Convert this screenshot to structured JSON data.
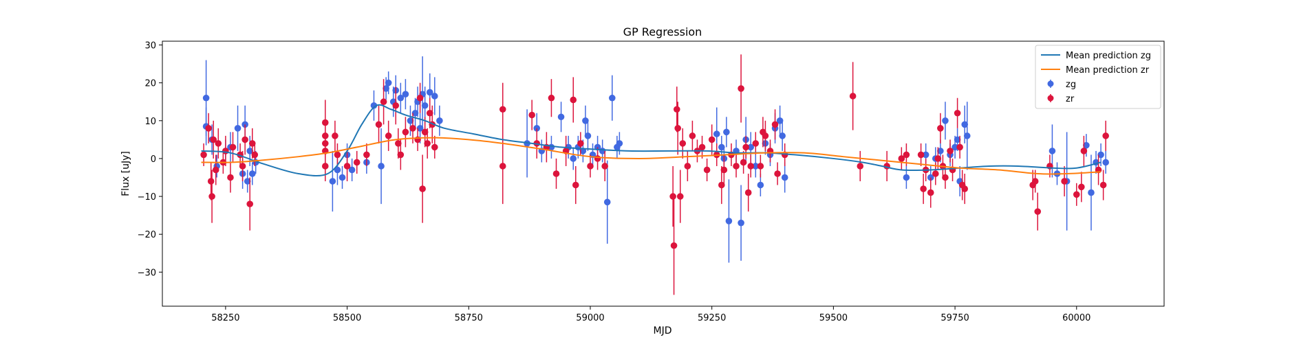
{
  "chart_data": {
    "type": "scatter",
    "title": "GP Regression",
    "xlabel": "MJD",
    "ylabel": "Flux [uJy]",
    "xlim": [
      58120,
      60180
    ],
    "ylim": [
      -39,
      31
    ],
    "xticks": [
      58250,
      58500,
      58750,
      59000,
      59250,
      59500,
      59750,
      60000
    ],
    "yticks": [
      -30,
      -20,
      -10,
      0,
      10,
      20,
      30
    ],
    "xtick_labels": [
      "58250",
      "58500",
      "58750",
      "59000",
      "59250",
      "59500",
      "59750",
      "60000"
    ],
    "ytick_labels": [
      "−30",
      "−20",
      "−10",
      "0",
      "10",
      "20",
      "30"
    ],
    "legend_position": "top-right",
    "legend": [
      {
        "label": "Mean prediction zg",
        "kind": "line",
        "color": "#1f77b4"
      },
      {
        "label": "Mean prediction zr",
        "kind": "line",
        "color": "#ff7f0e"
      },
      {
        "label": "zg",
        "kind": "errorbar",
        "color": "#4169e1"
      },
      {
        "label": "zr",
        "kind": "errorbar",
        "color": "#dc143c"
      }
    ],
    "lines": [
      {
        "name": "Mean prediction zg",
        "color": "#1f77b4",
        "x": [
          58200,
          58260,
          58330,
          58400,
          58460,
          58500,
          58530,
          58560,
          58590,
          58620,
          58660,
          58700,
          58760,
          58820,
          58880,
          58940,
          59000,
          59080,
          59160,
          59240,
          59300,
          59360,
          59420,
          59500,
          59560,
          59600,
          59640,
          59700,
          59760,
          59820,
          59880,
          59950,
          60000,
          60050
        ],
        "y": [
          2,
          1.5,
          -1.5,
          -4,
          -4,
          2,
          9,
          14,
          13,
          11.5,
          10,
          8,
          6.5,
          5,
          4,
          3,
          2.5,
          2,
          2,
          2,
          1.5,
          1.5,
          1,
          0,
          -1,
          -2,
          -3,
          -3,
          -2.5,
          -2,
          -2,
          -2.5,
          -2.5,
          -1
        ]
      },
      {
        "name": "Mean prediction zr",
        "color": "#ff7f0e",
        "x": [
          58200,
          58260,
          58320,
          58400,
          58460,
          58520,
          58600,
          58680,
          58750,
          58820,
          58900,
          59000,
          59100,
          59200,
          59280,
          59360,
          59440,
          59520,
          59600,
          59680,
          59760,
          59840,
          59920,
          59980,
          60050
        ],
        "y": [
          -1,
          -1,
          -0.5,
          0.5,
          1.5,
          3,
          5,
          5.5,
          5,
          4,
          2.5,
          0.5,
          0,
          0.5,
          1,
          1.5,
          1.5,
          0.5,
          -0.5,
          -1.5,
          -2.5,
          -3,
          -4,
          -4,
          -3.5
        ]
      }
    ],
    "series": [
      {
        "name": "zg",
        "color": "#4169e1",
        "points": [
          [
            58210,
            16,
            10
          ],
          [
            58210,
            8.5,
            5
          ],
          [
            58222,
            5,
            4
          ],
          [
            58232,
            -2,
            3
          ],
          [
            58250,
            2,
            3
          ],
          [
            58260,
            3,
            4
          ],
          [
            58275,
            8,
            6
          ],
          [
            58285,
            -4,
            4
          ],
          [
            58290,
            9,
            5
          ],
          [
            58295,
            -6,
            3
          ],
          [
            58300,
            2,
            4
          ],
          [
            58305,
            -4,
            3
          ],
          [
            58312,
            -1,
            3
          ],
          [
            58470,
            -6,
            8
          ],
          [
            58480,
            -3,
            4
          ],
          [
            58490,
            -5,
            3
          ],
          [
            58500,
            1,
            3
          ],
          [
            58510,
            -3,
            3
          ],
          [
            58540,
            -1,
            3
          ],
          [
            58555,
            14,
            4
          ],
          [
            58570,
            -2,
            10
          ],
          [
            58580,
            18.5,
            3
          ],
          [
            58585,
            20,
            3
          ],
          [
            58595,
            15,
            4
          ],
          [
            58600,
            18,
            4
          ],
          [
            58610,
            16,
            4
          ],
          [
            58620,
            17,
            4
          ],
          [
            58630,
            10,
            4
          ],
          [
            58640,
            12,
            4
          ],
          [
            58645,
            15,
            4
          ],
          [
            58650,
            8,
            4
          ],
          [
            58655,
            17,
            10
          ],
          [
            58660,
            14,
            5
          ],
          [
            58670,
            17.5,
            5
          ],
          [
            58680,
            16.5,
            5
          ],
          [
            58690,
            10,
            4
          ],
          [
            58870,
            4,
            9
          ],
          [
            58890,
            8,
            4
          ],
          [
            58900,
            2,
            3
          ],
          [
            58920,
            3,
            3
          ],
          [
            58940,
            11,
            4
          ],
          [
            58955,
            3,
            3
          ],
          [
            58965,
            0,
            3
          ],
          [
            58975,
            3,
            3
          ],
          [
            58985,
            2,
            3
          ],
          [
            58990,
            10,
            4
          ],
          [
            58995,
            6,
            4
          ],
          [
            59005,
            1,
            3
          ],
          [
            59015,
            3,
            3
          ],
          [
            59025,
            2,
            3
          ],
          [
            59035,
            -11.5,
            11
          ],
          [
            59045,
            16,
            6
          ],
          [
            59055,
            3,
            3
          ],
          [
            59060,
            4,
            3
          ],
          [
            59260,
            6.5,
            7
          ],
          [
            59270,
            3,
            3
          ],
          [
            59275,
            0,
            3
          ],
          [
            59280,
            7,
            4
          ],
          [
            59285,
            -16.5,
            11
          ],
          [
            59300,
            2,
            3
          ],
          [
            59310,
            -17,
            10
          ],
          [
            59320,
            5,
            6
          ],
          [
            59330,
            3,
            4
          ],
          [
            59340,
            -2,
            3
          ],
          [
            59350,
            -7,
            3
          ],
          [
            59360,
            4,
            3
          ],
          [
            59370,
            1,
            3
          ],
          [
            59380,
            8,
            4
          ],
          [
            59390,
            10,
            4
          ],
          [
            59395,
            6,
            4
          ],
          [
            59400,
            -5,
            4
          ],
          [
            59650,
            -5,
            3
          ],
          [
            59690,
            1,
            3
          ],
          [
            59700,
            -5,
            3
          ],
          [
            59710,
            0,
            3
          ],
          [
            59720,
            2,
            3
          ],
          [
            59730,
            10,
            5
          ],
          [
            59740,
            1,
            3
          ],
          [
            59750,
            3,
            3
          ],
          [
            59755,
            5,
            3
          ],
          [
            59760,
            -6,
            4
          ],
          [
            59770,
            9,
            5
          ],
          [
            59775,
            6,
            9
          ],
          [
            59950,
            2,
            7
          ],
          [
            59960,
            -4,
            3
          ],
          [
            59980,
            -6,
            13
          ],
          [
            60020,
            3.5,
            3
          ],
          [
            60030,
            -9,
            10
          ],
          [
            60040,
            -1,
            3
          ],
          [
            60050,
            1,
            3
          ],
          [
            60060,
            -1,
            3
          ]
        ]
      },
      {
        "name": "zr",
        "color": "#dc143c",
        "points": [
          [
            58205,
            1,
            3
          ],
          [
            58215,
            8,
            4
          ],
          [
            58220,
            -6,
            5
          ],
          [
            58222,
            -10,
            7
          ],
          [
            58225,
            5,
            5
          ],
          [
            58230,
            -3,
            4
          ],
          [
            58235,
            4,
            4
          ],
          [
            58245,
            -1,
            3
          ],
          [
            58250,
            2,
            4
          ],
          [
            58260,
            -5,
            4
          ],
          [
            58265,
            3,
            4
          ],
          [
            58280,
            1,
            3
          ],
          [
            58285,
            -2,
            4
          ],
          [
            58290,
            5,
            4
          ],
          [
            58300,
            -12,
            7
          ],
          [
            58305,
            4,
            4
          ],
          [
            58310,
            1,
            3
          ],
          [
            58455,
            9.5,
            6
          ],
          [
            58455,
            6,
            4
          ],
          [
            58455,
            4,
            4
          ],
          [
            58455,
            2,
            4
          ],
          [
            58455,
            -2,
            4
          ],
          [
            58475,
            6,
            4
          ],
          [
            58480,
            1,
            3
          ],
          [
            58500,
            -2,
            4
          ],
          [
            58520,
            -1,
            3
          ],
          [
            58540,
            1,
            3
          ],
          [
            58565,
            9,
            5
          ],
          [
            58575,
            15,
            6
          ],
          [
            58585,
            6,
            4
          ],
          [
            58600,
            14,
            5
          ],
          [
            58605,
            4,
            4
          ],
          [
            58610,
            1,
            4
          ],
          [
            58620,
            7,
            4
          ],
          [
            58635,
            8,
            4
          ],
          [
            58645,
            5,
            3
          ],
          [
            58650,
            16,
            4
          ],
          [
            58655,
            -8,
            9
          ],
          [
            58660,
            7,
            4
          ],
          [
            58665,
            4,
            4
          ],
          [
            58670,
            12,
            4
          ],
          [
            58675,
            9,
            5
          ],
          [
            58680,
            3,
            3
          ],
          [
            58820,
            13,
            7
          ],
          [
            58820,
            -2,
            10
          ],
          [
            58880,
            11.5,
            4
          ],
          [
            58890,
            4,
            4
          ],
          [
            58910,
            3,
            4
          ],
          [
            58920,
            16,
            5
          ],
          [
            58930,
            -4,
            4
          ],
          [
            58950,
            2,
            4
          ],
          [
            58965,
            15.5,
            6
          ],
          [
            58970,
            -7,
            5
          ],
          [
            58980,
            4,
            3
          ],
          [
            59000,
            -2,
            3
          ],
          [
            59015,
            0,
            3
          ],
          [
            59030,
            -2,
            4
          ],
          [
            59170,
            -10,
            8
          ],
          [
            59172,
            -23,
            13
          ],
          [
            59178,
            13,
            6
          ],
          [
            59180,
            8,
            7
          ],
          [
            59185,
            -10,
            7
          ],
          [
            59190,
            4,
            4
          ],
          [
            59200,
            -2,
            4
          ],
          [
            59210,
            6,
            4
          ],
          [
            59220,
            2,
            3
          ],
          [
            59230,
            3,
            3
          ],
          [
            59240,
            -3,
            3
          ],
          [
            59250,
            5,
            4
          ],
          [
            59260,
            1,
            3
          ],
          [
            59270,
            -7,
            5
          ],
          [
            59275,
            -3,
            4
          ],
          [
            59290,
            1,
            3
          ],
          [
            59300,
            -2,
            3
          ],
          [
            59310,
            18.5,
            9
          ],
          [
            59315,
            -1,
            3
          ],
          [
            59320,
            3,
            3
          ],
          [
            59325,
            -9,
            5
          ],
          [
            59330,
            -2,
            3
          ],
          [
            59340,
            4,
            3
          ],
          [
            59350,
            -2,
            3
          ],
          [
            59355,
            7,
            4
          ],
          [
            59360,
            6,
            4
          ],
          [
            59370,
            2,
            3
          ],
          [
            59380,
            9,
            4
          ],
          [
            59385,
            -4,
            3
          ],
          [
            59400,
            1,
            3
          ],
          [
            59540,
            16.5,
            9
          ],
          [
            59555,
            -2,
            4
          ],
          [
            59610,
            -2,
            4
          ],
          [
            59640,
            0,
            3
          ],
          [
            59650,
            1,
            3
          ],
          [
            59680,
            1,
            3
          ],
          [
            59685,
            -8,
            4
          ],
          [
            59690,
            -3,
            3
          ],
          [
            59700,
            -9,
            4
          ],
          [
            59710,
            -4,
            3
          ],
          [
            59715,
            0,
            3
          ],
          [
            59720,
            8,
            4
          ],
          [
            59725,
            -2,
            3
          ],
          [
            59730,
            -5,
            3
          ],
          [
            59740,
            2,
            3
          ],
          [
            59745,
            -3,
            3
          ],
          [
            59755,
            12,
            4
          ],
          [
            59760,
            3,
            3
          ],
          [
            59765,
            -7,
            4
          ],
          [
            59770,
            -8,
            4
          ],
          [
            59910,
            -7,
            4
          ],
          [
            59915,
            -6,
            3
          ],
          [
            59920,
            -14,
            5
          ],
          [
            59945,
            -2,
            3
          ],
          [
            59975,
            -6,
            4
          ],
          [
            60000,
            -9.5,
            3
          ],
          [
            60010,
            -7.5,
            4
          ],
          [
            60015,
            2,
            4
          ],
          [
            60045,
            -3,
            4
          ],
          [
            60055,
            -7,
            4
          ],
          [
            60060,
            6,
            4
          ]
        ]
      }
    ]
  }
}
